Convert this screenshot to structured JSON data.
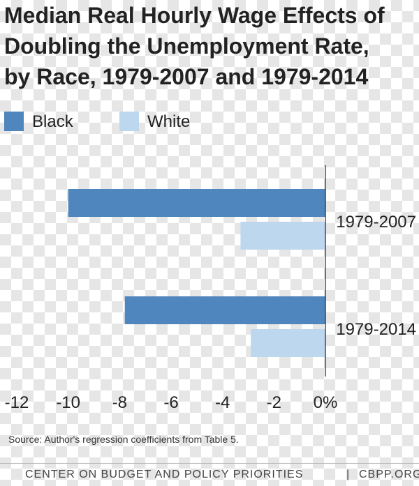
{
  "title_lines": [
    "Median Real Hourly Wage Effects of",
    "Doubling the Unemployment Rate,",
    "by Race, 1979-2007 and 1979-2014"
  ],
  "legend": [
    {
      "label": "Black",
      "color": "#4f86be"
    },
    {
      "label": "White",
      "color": "#bcd7ee"
    }
  ],
  "chart_data": {
    "type": "bar",
    "orientation": "horizontal",
    "categories": [
      "1979-2007",
      "1979-2014"
    ],
    "series": [
      {
        "name": "Black",
        "values": [
          -10.0,
          -7.8
        ],
        "color": "#4f86be"
      },
      {
        "name": "White",
        "values": [
          -3.3,
          -2.9
        ],
        "color": "#bcd7ee"
      }
    ],
    "xlim": [
      -12,
      0
    ],
    "x_ticks": [
      -12,
      -10,
      -8,
      -6,
      -4,
      -2,
      0
    ],
    "x_tick_labels": [
      "-12",
      "-10",
      "-8",
      "-6",
      "-4",
      "-2",
      "0%"
    ],
    "grid": false
  },
  "source": "Source: Author's regression coefficients from Table 5.",
  "footer": {
    "org": "CENTER ON BUDGET AND POLICY PRIORITIES",
    "separator": "|",
    "site": "CBPP.ORG"
  }
}
